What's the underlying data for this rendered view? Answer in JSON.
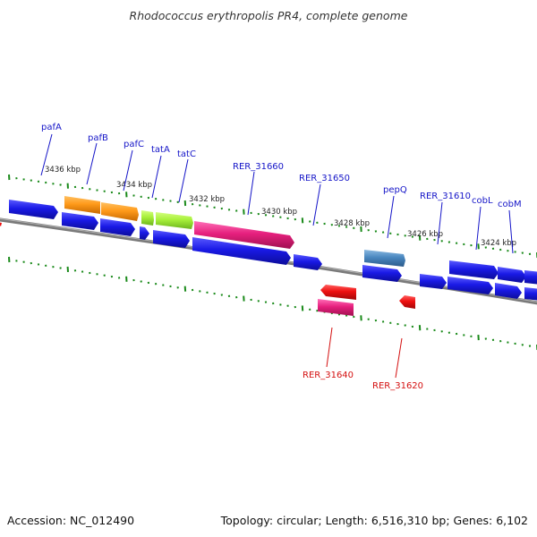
{
  "title": "Rhodococcus erythropolis PR4, complete genome",
  "footer": {
    "accession": "Accession: NC_012490",
    "summary": "Topology: circular; Length: 6,516,310 bp; Genes: 6,102"
  },
  "kbp_labels": [
    "3436 kbp",
    "3434 kbp",
    "3432 kbp",
    "3430 kbp",
    "3428 kbp",
    "3426 kbp",
    "3424 kbp"
  ],
  "forward_labels": [
    "pafA",
    "pafB",
    "pafC",
    "tatA",
    "tatC",
    "RER_31660",
    "RER_31650",
    "pepQ",
    "RER_31610",
    "cobL",
    "cobM"
  ],
  "reverse_labels": [
    "RER_31640",
    "RER_31620"
  ],
  "colors": {
    "backbone": "#7a7a7a",
    "tick": "#1a8a1a",
    "gene_blue": "#1a1ae6",
    "gene_orange": "#ff9a1a",
    "gene_lime": "#a8f03a",
    "gene_magenta": "#e6207e",
    "gene_steelblue": "#4a88c0",
    "gene_red": "#ee1010",
    "label_forward": "#1515c8",
    "label_reverse": "#d41010"
  }
}
